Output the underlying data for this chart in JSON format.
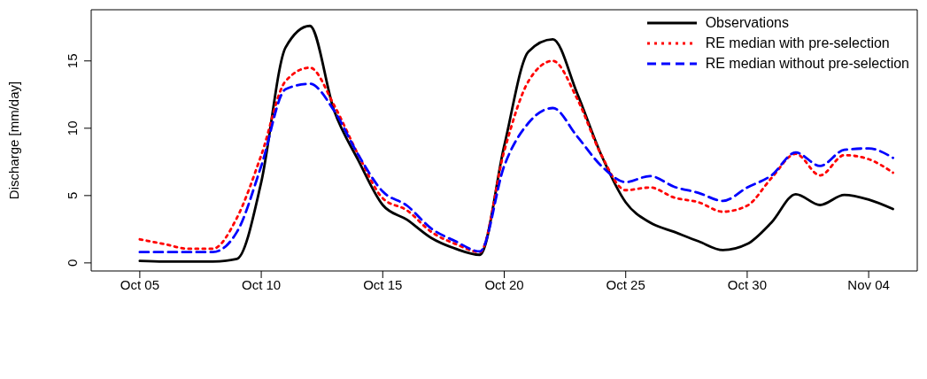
{
  "chart_data": {
    "type": "line",
    "ylabel": "Discharge [mm/day]",
    "x": [
      "--10-05",
      "--10-06",
      "--10-07",
      "--10-08",
      "--10-09",
      "--10-10",
      "--10-11",
      "--10-12",
      "--10-13",
      "--10-14",
      "--10-15",
      "--10-16",
      "--10-17",
      "--10-18",
      "--10-19",
      "--10-20",
      "--10-21",
      "--10-22",
      "--10-23",
      "--10-24",
      "--10-25",
      "--10-26",
      "--10-27",
      "--10-28",
      "--10-29",
      "--10-30",
      "--10-31",
      "--11-01",
      "--11-02",
      "--11-03",
      "--11-04",
      "--11-05"
    ],
    "series": [
      {
        "name": "Observations",
        "color": "#000000",
        "line_style": "solid",
        "values": [
          0.15,
          0.1,
          0.1,
          0.1,
          0.3,
          6,
          16,
          17.6,
          11.3,
          7.6,
          4.3,
          3.2,
          1.85,
          1.05,
          0.6,
          8.7,
          15.7,
          16.6,
          12.6,
          8,
          4.5,
          3,
          2.3,
          1.6,
          0.95,
          1.4,
          3,
          5.1,
          4.3,
          5.05,
          4.7,
          4
        ]
      },
      {
        "name": "RE median with pre-selection",
        "color": "#ff0000",
        "line_style": "dotted",
        "values": [
          1.75,
          1.4,
          1.05,
          1.05,
          3.35,
          8,
          13.5,
          14.5,
          11.7,
          8,
          4.8,
          3.9,
          2.3,
          1.4,
          0.8,
          8.3,
          13.5,
          15,
          12.2,
          8,
          5.4,
          5.6,
          4.85,
          4.5,
          3.8,
          4.25,
          6.3,
          8.1,
          6.5,
          8,
          7.7,
          6.7
        ]
      },
      {
        "name": "RE median without pre-selection",
        "color": "#0000ff",
        "line_style": "dashed",
        "values": [
          0.8,
          0.8,
          0.8,
          0.8,
          2.3,
          7.2,
          12.9,
          13.3,
          11.3,
          8,
          5.3,
          4.25,
          2.55,
          1.6,
          0.85,
          7.2,
          10.4,
          11.5,
          9.4,
          7.2,
          6,
          6.45,
          5.65,
          5.2,
          4.6,
          5.6,
          6.5,
          8.2,
          7.2,
          8.4,
          8.5,
          7.8
        ]
      }
    ],
    "xlim": [
      "--10-03",
      "--11-06"
    ],
    "xticks": [
      {
        "value": "--10-05",
        "label": "Oct 05"
      },
      {
        "value": "--10-10",
        "label": "Oct 10"
      },
      {
        "value": "--10-15",
        "label": "Oct 15"
      },
      {
        "value": "--10-20",
        "label": "Oct 20"
      },
      {
        "value": "--10-25",
        "label": "Oct 25"
      },
      {
        "value": "--10-30",
        "label": "Oct 30"
      },
      {
        "value": "--11-04",
        "label": "Nov 04"
      }
    ],
    "ylim": [
      -0.6,
      18.8
    ],
    "yticks": [
      0,
      5,
      10,
      15
    ],
    "grid": false,
    "legend": "top right",
    "marker": "none"
  }
}
